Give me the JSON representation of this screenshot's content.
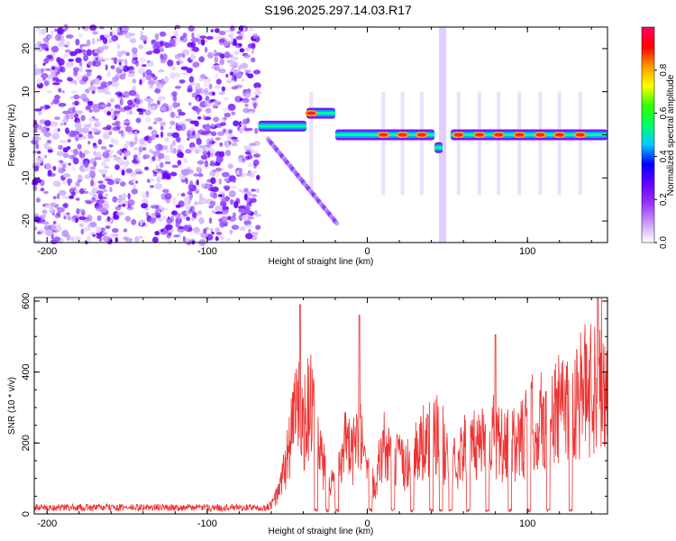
{
  "title": "S196.2025.297.14.03.R17",
  "chart_data": [
    {
      "type": "heatmap",
      "xlabel": "Height of straight line (km)",
      "ylabel": "Frequency (Hz)",
      "xlim": [
        -208,
        150
      ],
      "ylim": [
        -25,
        25
      ],
      "xticks": [
        -200,
        -100,
        0,
        100
      ],
      "yticks": [
        -20,
        -10,
        0,
        10,
        20
      ],
      "colorbar": {
        "label": "Normalized spectral amplitude",
        "range": [
          0,
          1
        ],
        "ticks": [
          "0.0",
          "0.2",
          "0.4",
          "0.6",
          "0.8"
        ],
        "tick_values": [
          0,
          0.2,
          0.4,
          0.6,
          0.8
        ],
        "colors": [
          "#ffffff",
          "#cc99ff",
          "#9933ff",
          "#6600ff",
          "#0000ff",
          "#00ccff",
          "#00ff66",
          "#33ff00",
          "#ffff00",
          "#ff9900",
          "#ff0000",
          "#ff0066"
        ]
      },
      "noise_region": {
        "x_start": -208,
        "x_end": -68
      },
      "line_segments": [
        {
          "x_start": -68,
          "x_end": -38,
          "freq": 2
        },
        {
          "x_start": -38,
          "x_end": -20,
          "freq": 5
        },
        {
          "x_start": -20,
          "x_end": 42,
          "freq": 0
        },
        {
          "x_start": 42,
          "x_end": 47,
          "freq": -3
        },
        {
          "x_start": 52,
          "x_end": 150,
          "freq": 0
        }
      ],
      "hot_spots": [
        -35,
        10,
        22,
        34,
        57,
        70,
        82,
        95,
        108,
        120,
        133
      ]
    },
    {
      "type": "line",
      "xlabel": "Height of straight line (km)",
      "ylabel": "SNR (10 * v/v)",
      "xlim": [
        -208,
        150
      ],
      "ylim": [
        0,
        610
      ],
      "xticks": [
        -200,
        -100,
        0,
        100
      ],
      "yticks": [
        0,
        200,
        400,
        600
      ],
      "color": "#ee3333",
      "series": [
        {
          "name": "SNR",
          "x": [
            -208,
            -150,
            -100,
            -68,
            -60,
            -55,
            -50,
            -45,
            -40,
            -35,
            -30,
            -25,
            -20,
            -15,
            -10,
            -5,
            0,
            5,
            10,
            15,
            20,
            25,
            30,
            35,
            40,
            45,
            50,
            55,
            60,
            65,
            70,
            75,
            80,
            85,
            90,
            95,
            100,
            105,
            110,
            115,
            120,
            125,
            130,
            135,
            140,
            145,
            150
          ],
          "y": [
            15,
            15,
            15,
            15,
            30,
            80,
            200,
            380,
            300,
            400,
            200,
            150,
            120,
            260,
            200,
            280,
            130,
            120,
            240,
            200,
            180,
            170,
            220,
            250,
            260,
            280,
            200,
            180,
            230,
            220,
            260,
            280,
            270,
            230,
            240,
            250,
            310,
            320,
            330,
            350,
            360,
            410,
            420,
            430,
            450,
            500,
            480
          ]
        }
      ],
      "peaks": [
        {
          "x": -42,
          "y": 590
        },
        {
          "x": -5,
          "y": 560
        },
        {
          "x": 144,
          "y": 610
        },
        {
          "x": 80,
          "y": 505
        }
      ],
      "dropouts": [
        -32,
        -25,
        -19,
        2,
        16,
        28,
        40,
        46,
        52,
        63,
        75,
        89,
        101,
        113,
        127
      ]
    }
  ]
}
